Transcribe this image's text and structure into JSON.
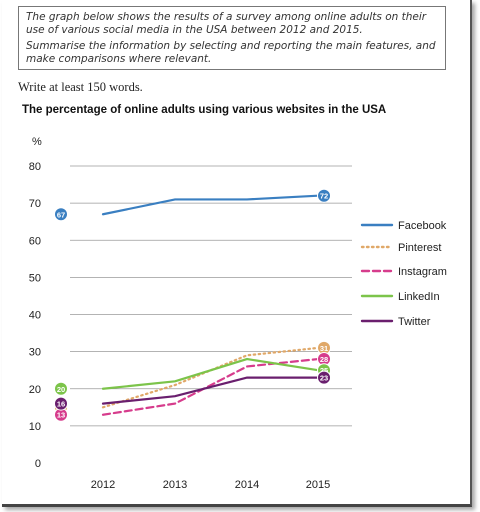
{
  "task": {
    "line1": "The graph below shows the results of a survey among online adults on their use of various social media in the USA between 2012 and 2015.",
    "line2": "Summarise the information by selecting and reporting the main features, and make comparisons where relevant."
  },
  "instruction": "Write at least 150 words.",
  "chart_data": {
    "type": "line",
    "title": "The percentage of online adults using various websites in the USA",
    "ylabel": "%",
    "xlabel": "",
    "categories": [
      "2012",
      "2013",
      "2014",
      "2015"
    ],
    "ylim": [
      0,
      80
    ],
    "yticks": [
      0,
      10,
      20,
      30,
      40,
      50,
      60,
      70,
      80
    ],
    "grid": true,
    "legend": "right",
    "series": [
      {
        "name": "Facebook",
        "values": [
          67,
          71,
          71,
          72
        ],
        "color": "#3a7fc1",
        "dash": "solid",
        "start_label": "67",
        "end_label": "72"
      },
      {
        "name": "Pinterest",
        "values": [
          15,
          21,
          29,
          31
        ],
        "color": "#e0a868",
        "dash": "dotted",
        "start_label": "15",
        "end_label": "31"
      },
      {
        "name": "Instagram",
        "values": [
          13,
          16,
          26,
          28
        ],
        "color": "#d63c8c",
        "dash": "dashed",
        "start_label": "13",
        "end_label": "28"
      },
      {
        "name": "LinkedIn",
        "values": [
          20,
          22,
          28,
          25
        ],
        "color": "#7cc44a",
        "dash": "solid",
        "start_label": "20",
        "end_label": "25"
      },
      {
        "name": "Twitter",
        "values": [
          16,
          18,
          23,
          23
        ],
        "color": "#6a1f6e",
        "dash": "solid",
        "start_label": "16",
        "end_label": "23"
      }
    ]
  }
}
